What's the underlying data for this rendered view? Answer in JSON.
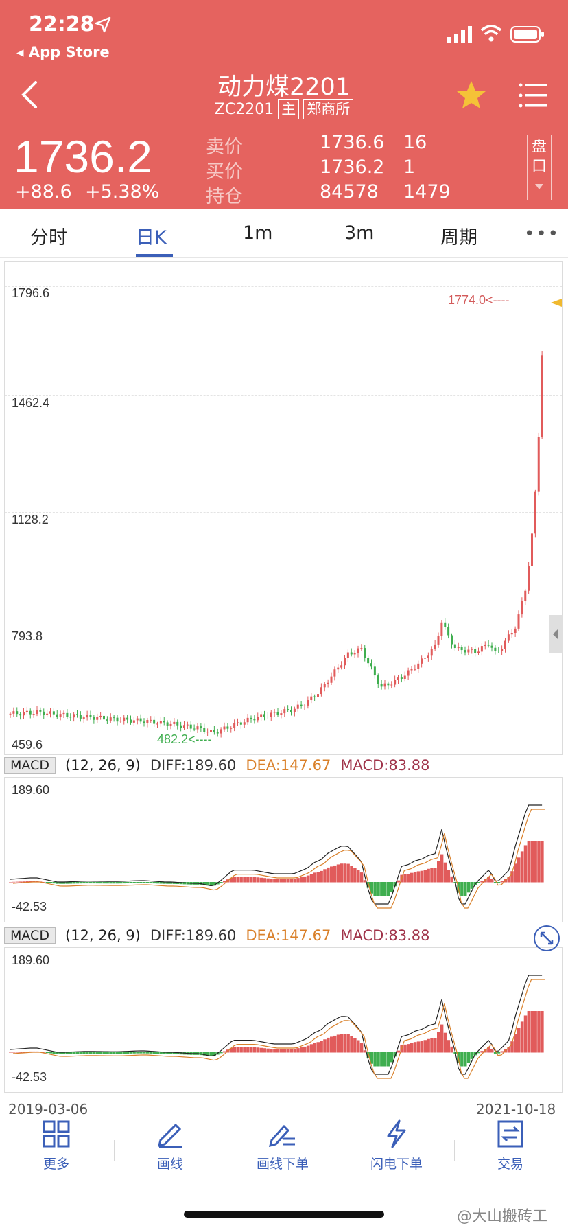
{
  "status_bar": {
    "time": "22:28",
    "back_app": "◂ App Store"
  },
  "header": {
    "title": "动力煤2201",
    "code": "ZC2201",
    "tag_main": "主",
    "tag_exchange": "郑商所",
    "last_price": "1736.2",
    "change": "+88.6",
    "change_pct": "+5.38%",
    "quote_rows": [
      {
        "label": "卖价",
        "value": "1736.6",
        "volume": "16"
      },
      {
        "label": "买价",
        "value": "1736.2",
        "volume": "1"
      },
      {
        "label": "持仓",
        "value": "84578",
        "volume": "1479"
      }
    ],
    "pankou_label_1": "盘",
    "pankou_label_2": "口"
  },
  "tabs": [
    "分时",
    "日K",
    "1m",
    "3m",
    "周期"
  ],
  "active_tab": "日K",
  "main_chart": {
    "y_labels": [
      "1796.6",
      "1462.4",
      "1128.2",
      "793.8",
      "459.6"
    ],
    "high_label": "1774.0<----",
    "low_label": "482.2<----"
  },
  "macd_panels": [
    {
      "box": "MACD",
      "params": "(12, 26, 9)",
      "diff": "DIFF:189.60",
      "dea": "DEA:147.67",
      "macd": "MACD:83.88",
      "ymax": "189.60",
      "ymin": "-42.53"
    },
    {
      "box": "MACD",
      "params": "(12, 26, 9)",
      "diff": "DIFF:189.60",
      "dea": "DEA:147.67",
      "macd": "MACD:83.88",
      "ymax": "189.60",
      "ymin": "-42.53"
    }
  ],
  "dates": {
    "start": "2019-03-06",
    "end": "2021-10-18"
  },
  "toolbar": [
    {
      "label": "更多",
      "icon": "grid-icon"
    },
    {
      "label": "画线",
      "icon": "pen-icon"
    },
    {
      "label": "画线下单",
      "icon": "draw-order-icon"
    },
    {
      "label": "闪电下单",
      "icon": "lightning-icon"
    },
    {
      "label": "交易",
      "icon": "trade-icon"
    }
  ],
  "watermark": "@大山搬砖工",
  "colors": {
    "header_red": "#e5635f",
    "accent_blue": "#3b5fb8",
    "up": "#e15b5b",
    "down": "#3fae4f",
    "dea": "#d9802a"
  }
}
